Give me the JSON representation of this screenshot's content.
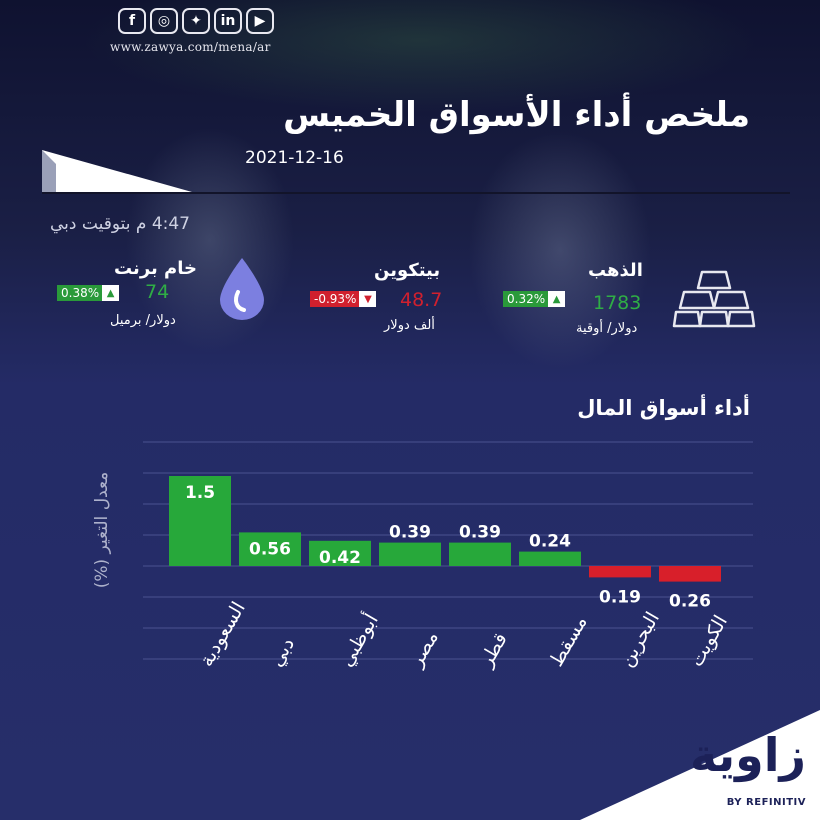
{
  "header": {
    "social": [
      {
        "icon": "facebook-icon",
        "glyph": "f"
      },
      {
        "icon": "instagram-icon",
        "glyph": "◎"
      },
      {
        "icon": "twitter-icon",
        "glyph": "✦"
      },
      {
        "icon": "linkedin-icon",
        "glyph": "in"
      },
      {
        "icon": "youtube-icon",
        "glyph": "▶"
      }
    ],
    "url": "www.zawya.com/mena/ar",
    "title": "ملخص أداء الأسواق الخميس",
    "date": "2021-12-16",
    "time": "4:47 م بتوقيت دبي"
  },
  "commodities": [
    {
      "key": "gold",
      "name": "الذهب",
      "price": "1783",
      "change": "0.32%",
      "direction": "up",
      "unit": "دولار/ أوقية",
      "icon": "gold-bars-icon"
    },
    {
      "key": "bitcoin",
      "name": "بيتكوين",
      "price": "48.7",
      "change": "-0.93%",
      "direction": "down",
      "unit": "ألف دولار",
      "icon": ""
    },
    {
      "key": "brent",
      "name": "خام برنت",
      "price": "74",
      "change": "0.38%",
      "direction": "up",
      "unit": "دولار/ برميل",
      "icon": "oil-drop-icon"
    }
  ],
  "colors": {
    "up": "#2a9a3a",
    "down": "#d0202e",
    "price_up": "#2fae45",
    "price_down": "#d0202e",
    "bar_up": "#27a83a",
    "bar_down": "#d81f2a"
  },
  "chart_data": {
    "type": "bar",
    "title": "أداء أسواق المال",
    "ylabel": "معدل التغير (%)",
    "categories": [
      "السعودية",
      "دبي",
      "أبوظبي",
      "مصر",
      "قطر",
      "مسقط",
      "البحرين",
      "الكويت"
    ],
    "values": [
      1.5,
      0.56,
      0.42,
      0.39,
      0.39,
      0.24,
      -0.19,
      -0.26
    ],
    "data_labels": [
      "1.5",
      "0.56",
      "0.42",
      "0.39",
      "0.39",
      "0.24",
      "0.19",
      "0.26"
    ],
    "grid": true
  },
  "footer": {
    "logo": "زاوية",
    "tagline": "BY REFINITIV"
  }
}
